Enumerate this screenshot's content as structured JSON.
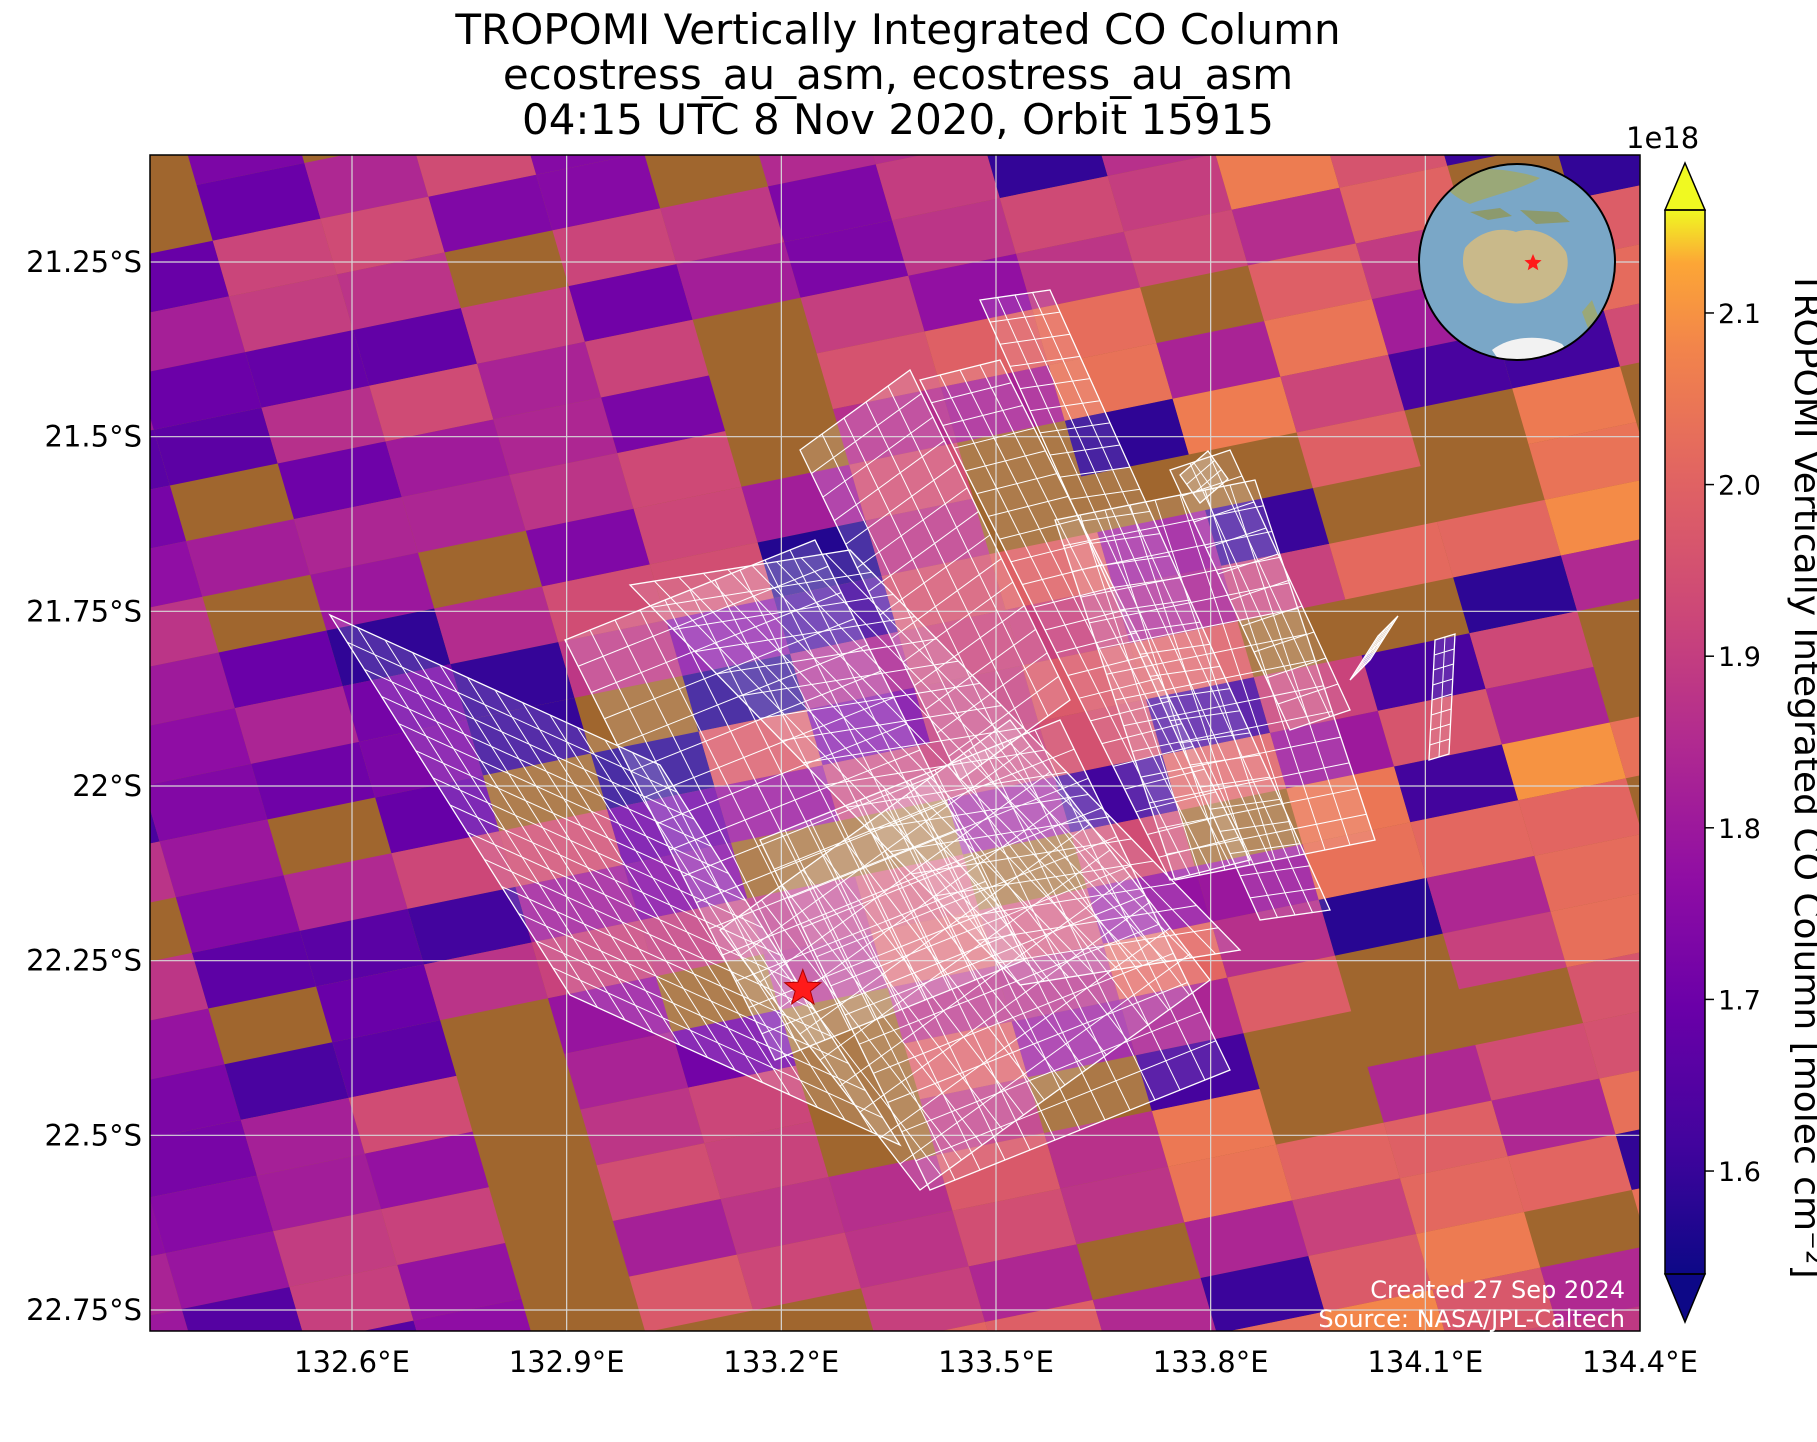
{
  "title": {
    "line1": "TROPOMI Vertically Integrated CO Column",
    "line2": "ecostress_au_asm, ecostress_au_asm",
    "line3": "04:15 UTC 8 Nov 2020, Orbit 15915"
  },
  "map": {
    "lon_ticks": [
      "132.6°E",
      "132.9°E",
      "133.2°E",
      "133.5°E",
      "133.8°E",
      "134.1°E",
      "134.4°E"
    ],
    "lat_ticks": [
      "21.25°S",
      "21.5°S",
      "21.75°S",
      "22°S",
      "22.25°S",
      "22.5°S",
      "22.75°S"
    ],
    "target_marker": {
      "lon": 133.23,
      "lat": -22.29,
      "color": "#ff1a1a"
    },
    "credit_line1": "Created 27 Sep 2024",
    "credit_line2": "Source: NASA/JPL-Caltech"
  },
  "colorbar": {
    "label": "TROPOMI Vertically Integrated CO Column [molec cm⁻²]",
    "scale_exponent": "1e18",
    "ticks": [
      "2.1",
      "2.0",
      "1.9",
      "1.8",
      "1.7",
      "1.6"
    ],
    "range": [
      1.54,
      2.16
    ],
    "colormap": "plasma",
    "extend": "both"
  },
  "inset_globe": {
    "ocean_color": "#7aa7c7",
    "land_color": "#c9b98a",
    "marker_color": "#ff1a1a"
  }
}
